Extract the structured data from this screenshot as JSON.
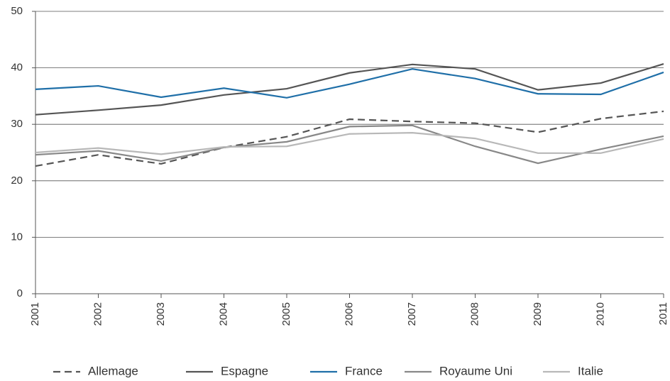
{
  "chart_data": {
    "type": "line",
    "categories": [
      "2001",
      "2002",
      "2003",
      "2004",
      "2005",
      "2006",
      "2007",
      "2008",
      "2009",
      "2010",
      "2011"
    ],
    "series": [
      {
        "name": "Allemage",
        "color": "#555555",
        "dash": true,
        "values": [
          22.6,
          24.6,
          23.0,
          25.9,
          27.8,
          30.9,
          30.5,
          30.2,
          28.6,
          31.0,
          32.3
        ]
      },
      {
        "name": "Espagne",
        "color": "#555555",
        "values": [
          31.7,
          32.5,
          33.4,
          35.2,
          36.3,
          39.1,
          40.6,
          39.8,
          36.1,
          37.3,
          40.7
        ]
      },
      {
        "name": "France",
        "color": "#1f6fa8",
        "values": [
          36.2,
          36.8,
          34.8,
          36.4,
          34.7,
          37.1,
          39.8,
          38.1,
          35.4,
          35.3,
          39.2
        ]
      },
      {
        "name": "Royaume Uni",
        "color": "#888888",
        "values": [
          24.6,
          25.3,
          23.5,
          25.9,
          26.9,
          29.6,
          29.8,
          26.1,
          23.1,
          25.6,
          27.9
        ]
      },
      {
        "name": "Italie",
        "color": "#b8b8b8",
        "values": [
          25.0,
          25.8,
          24.7,
          26.0,
          26.1,
          28.3,
          28.5,
          27.5,
          24.9,
          24.9,
          27.4
        ]
      }
    ],
    "ylim": [
      0,
      50
    ],
    "yticks": [
      0,
      10,
      20,
      30,
      40,
      50
    ],
    "grid": true,
    "legend": "bottom"
  }
}
